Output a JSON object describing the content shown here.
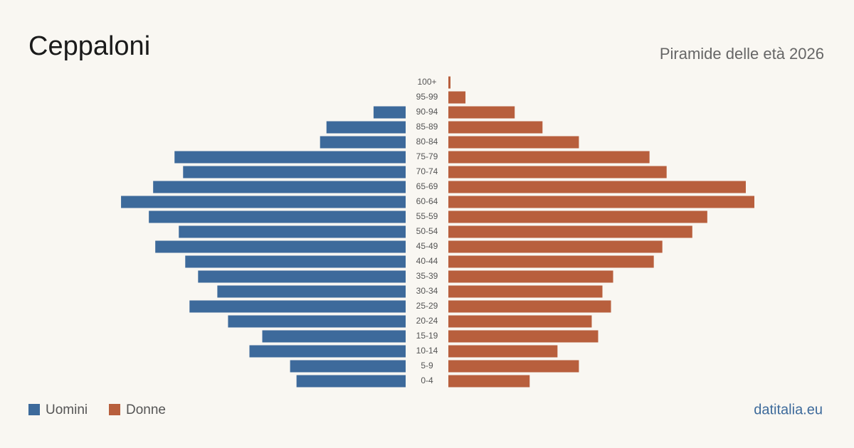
{
  "chart_data": {
    "type": "pyramid",
    "title": "Ceppaloni",
    "subtitle": "Piramide delle età 2026",
    "source": "datitalia.eu",
    "categories": [
      "100+",
      "95-99",
      "90-94",
      "85-89",
      "80-84",
      "75-79",
      "70-74",
      "65-69",
      "60-64",
      "55-59",
      "50-54",
      "45-49",
      "40-44",
      "35-39",
      "30-34",
      "25-29",
      "20-24",
      "15-19",
      "10-14",
      "5-9",
      "0-4"
    ],
    "series": [
      {
        "name": "Uomini",
        "color": "#3d6a9b",
        "values": [
          0,
          0,
          15,
          37,
          40,
          108,
          104,
          118,
          133,
          120,
          106,
          117,
          103,
          97,
          88,
          101,
          83,
          67,
          73,
          54,
          51
        ]
      },
      {
        "name": "Donne",
        "color": "#b85f3d",
        "values": [
          1,
          8,
          31,
          44,
          61,
          94,
          102,
          139,
          143,
          121,
          114,
          100,
          96,
          77,
          72,
          76,
          67,
          70,
          51,
          61,
          38
        ]
      }
    ]
  }
}
